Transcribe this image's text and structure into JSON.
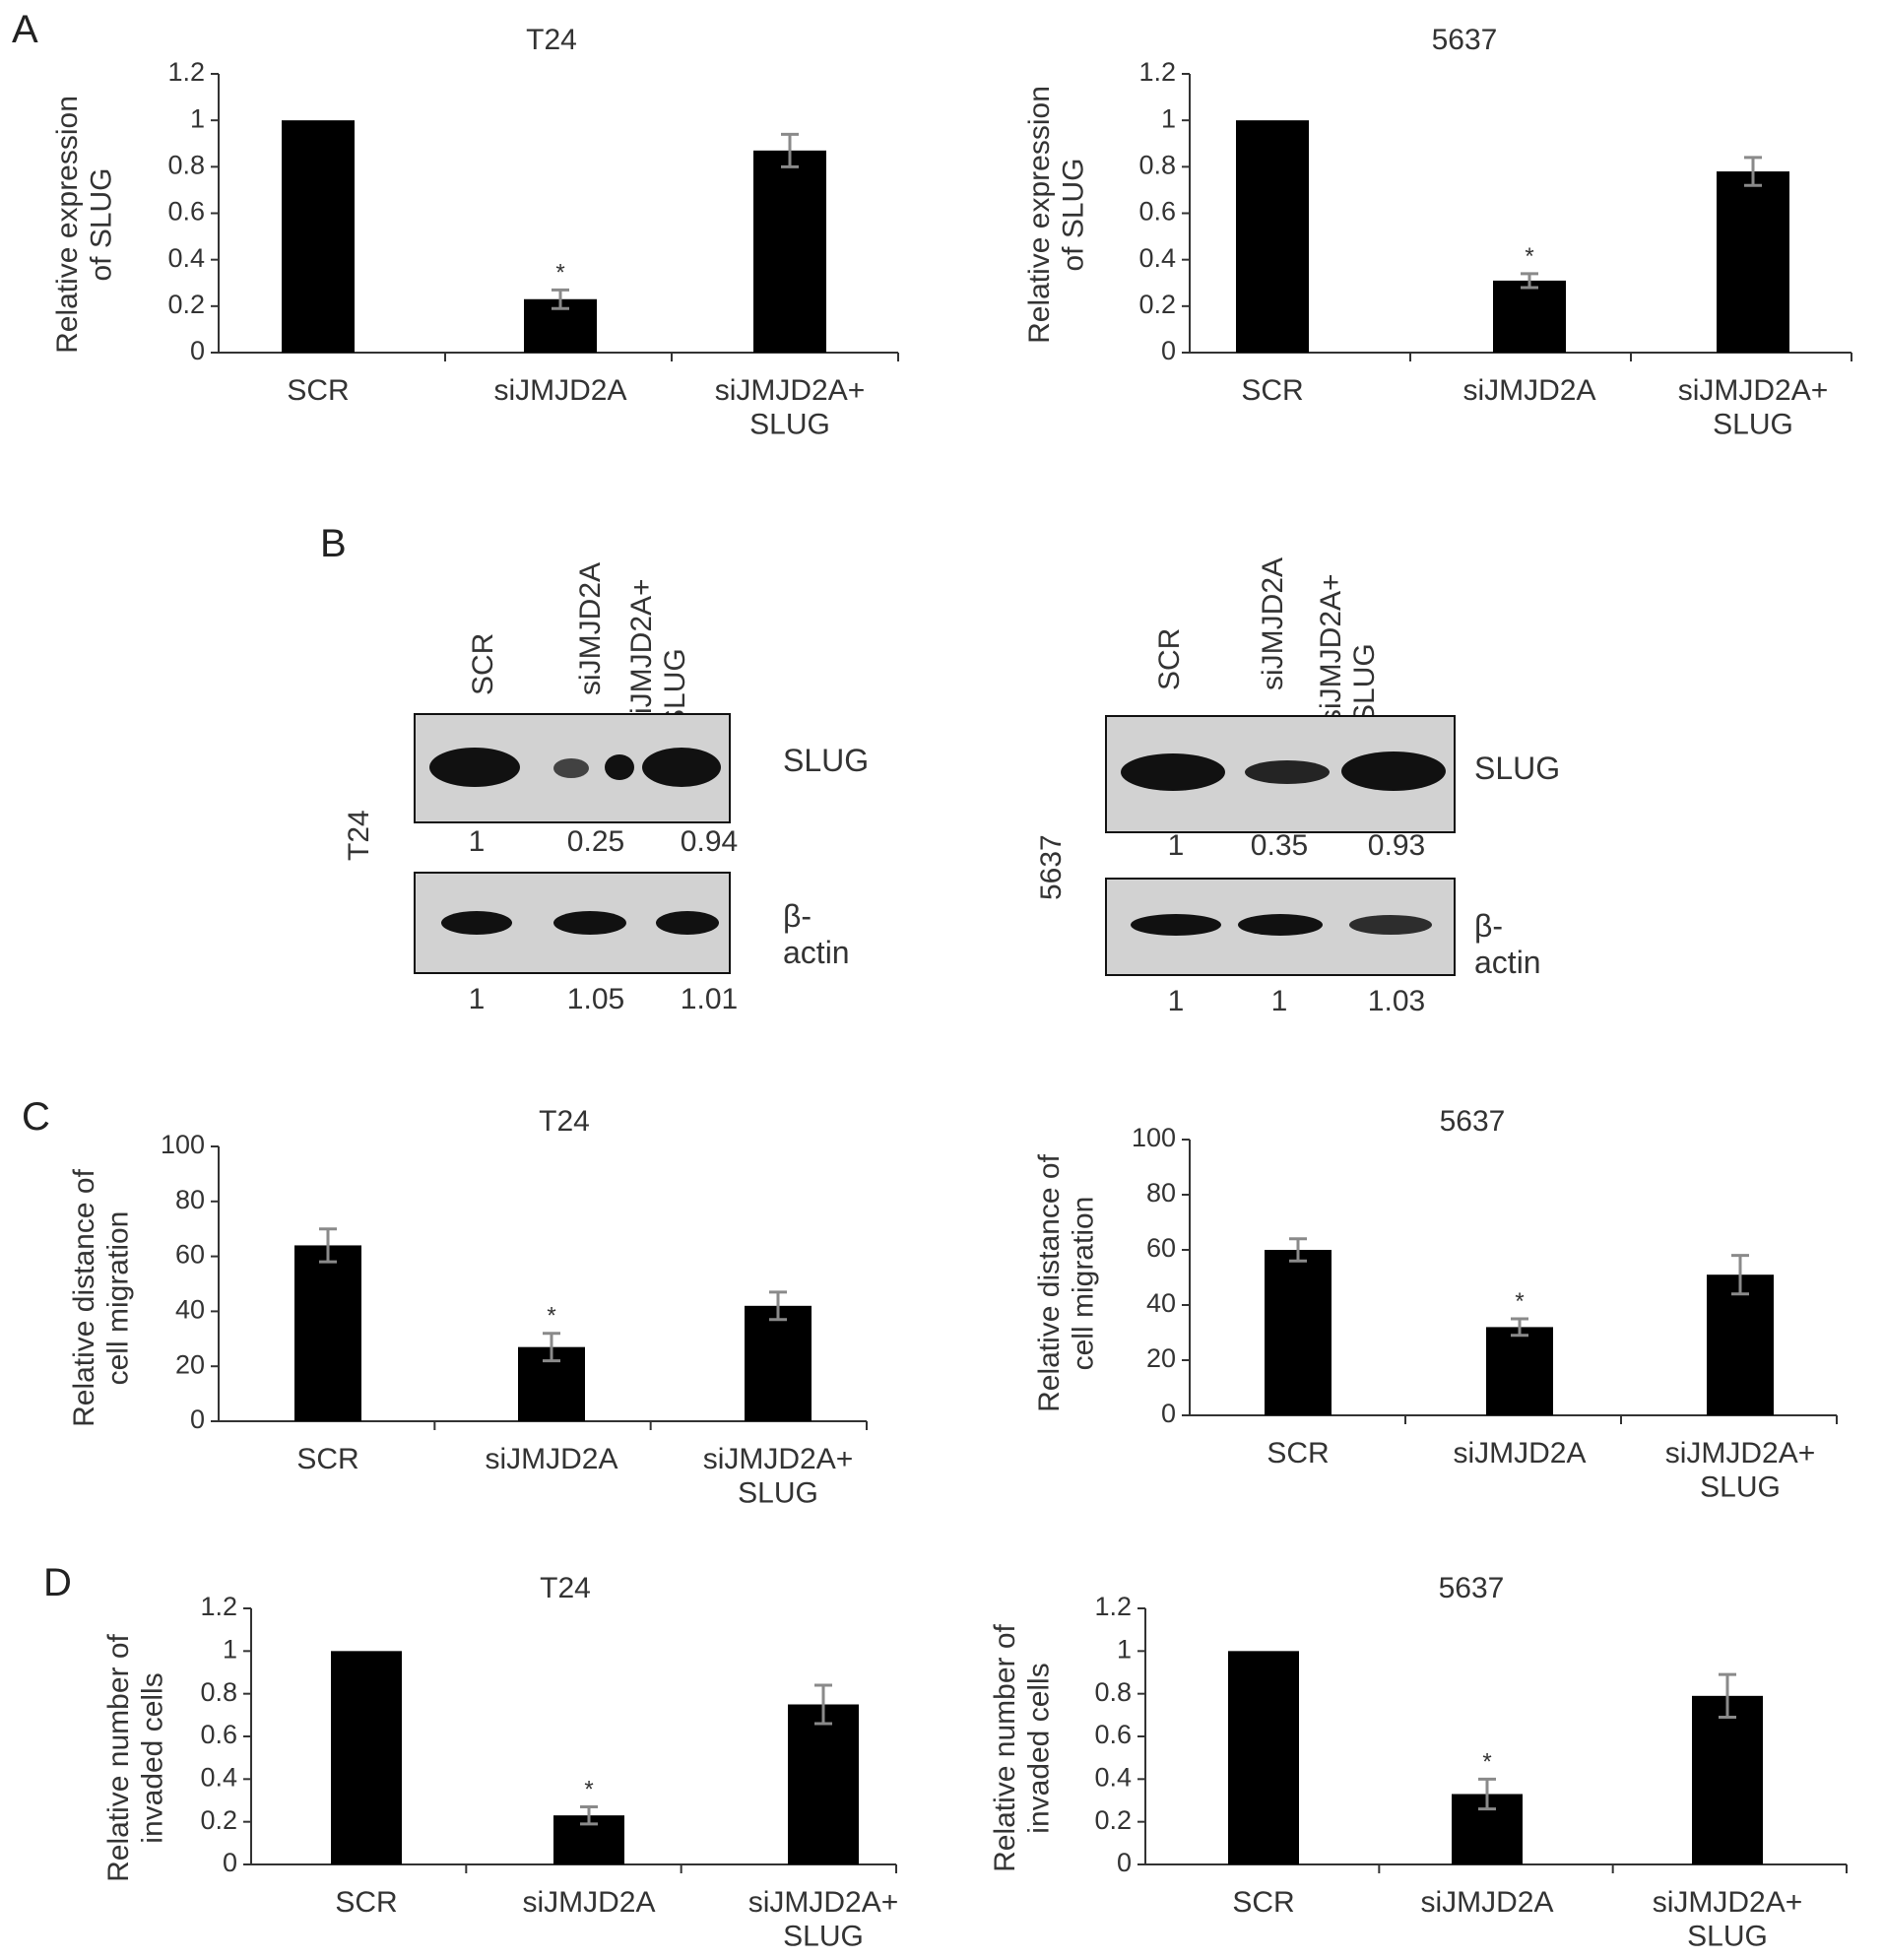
{
  "panels": {
    "a": "A",
    "b": "B",
    "c": "C",
    "d": "D"
  },
  "chart_data": [
    {
      "id": "A-T24",
      "type": "bar",
      "title": "T24",
      "ylabel": "Relative expression\nof SLUG",
      "ylim": [
        0,
        1.2
      ],
      "yticks": [
        0,
        0.2,
        0.4,
        0.6,
        0.8,
        1,
        1.2
      ],
      "categories": [
        "SCR",
        "siJMJD2A",
        "siJMJD2A+\nSLUG"
      ],
      "values": [
        1.0,
        0.23,
        0.87
      ],
      "errors": [
        0.0,
        0.04,
        0.07
      ],
      "significance": [
        "",
        "*",
        ""
      ]
    },
    {
      "id": "A-5637",
      "type": "bar",
      "title": "5637",
      "ylabel": "Relative expression\nof SLUG",
      "ylim": [
        0,
        1.2
      ],
      "yticks": [
        0,
        0.2,
        0.4,
        0.6,
        0.8,
        1,
        1.2
      ],
      "categories": [
        "SCR",
        "siJMJD2A",
        "siJMJD2A+\nSLUG"
      ],
      "values": [
        1.0,
        0.31,
        0.78
      ],
      "errors": [
        0.0,
        0.03,
        0.06
      ],
      "significance": [
        "",
        "*",
        ""
      ]
    },
    {
      "id": "C-T24",
      "type": "bar",
      "title": "T24",
      "ylabel": "Relative distance of\ncell migration",
      "ylim": [
        0,
        100
      ],
      "yticks": [
        0,
        20,
        40,
        60,
        80,
        100
      ],
      "categories": [
        "SCR",
        "siJMJD2A",
        "siJMJD2A+\nSLUG"
      ],
      "values": [
        64,
        27,
        42
      ],
      "errors": [
        6,
        5,
        5
      ],
      "significance": [
        "",
        "*",
        ""
      ]
    },
    {
      "id": "C-5637",
      "type": "bar",
      "title": "5637",
      "ylabel": "Relative distance of\ncell migration",
      "ylim": [
        0,
        100
      ],
      "yticks": [
        0,
        20,
        40,
        60,
        80,
        100
      ],
      "categories": [
        "SCR",
        "siJMJD2A",
        "siJMJD2A+\nSLUG"
      ],
      "values": [
        60,
        32,
        51
      ],
      "errors": [
        4,
        3,
        7
      ],
      "significance": [
        "",
        "*",
        ""
      ]
    },
    {
      "id": "D-T24",
      "type": "bar",
      "title": "T24",
      "ylabel": "Relative number of\ninvaded cells",
      "ylim": [
        0,
        1.2
      ],
      "yticks": [
        0,
        0.2,
        0.4,
        0.6,
        0.8,
        1,
        1.2
      ],
      "categories": [
        "SCR",
        "siJMJD2A",
        "siJMJD2A+\nSLUG"
      ],
      "values": [
        1.0,
        0.23,
        0.75
      ],
      "errors": [
        0.0,
        0.04,
        0.09
      ],
      "significance": [
        "",
        "*",
        ""
      ]
    },
    {
      "id": "D-5637",
      "type": "bar",
      "title": "5637",
      "ylabel": "Relative number of\ninvaded cells",
      "ylim": [
        0,
        1.2
      ],
      "yticks": [
        0,
        0.2,
        0.4,
        0.6,
        0.8,
        1,
        1.2
      ],
      "categories": [
        "SCR",
        "siJMJD2A",
        "siJMJD2A+\nSLUG"
      ],
      "values": [
        1.0,
        0.33,
        0.79
      ],
      "errors": [
        0.0,
        0.07,
        0.1
      ],
      "significance": [
        "",
        "*",
        ""
      ]
    }
  ],
  "blots": [
    {
      "cell_line": "T24",
      "lanes": [
        "SCR",
        "siJMJD2A",
        "siJMJD2A+\nSLUG"
      ],
      "slug_label": "SLUG",
      "slug_quant": [
        "1",
        "0.25",
        "0.94"
      ],
      "actin_label": "β-actin",
      "actin_quant": [
        "1",
        "1.05",
        "1.01"
      ]
    },
    {
      "cell_line": "5637",
      "lanes": [
        "SCR",
        "siJMJD2A",
        "siJMJD2A+\nSLUG"
      ],
      "slug_label": "SLUG",
      "slug_quant": [
        "1",
        "0.35",
        "0.93"
      ],
      "actin_label": "β-actin",
      "actin_quant": [
        "1",
        "1",
        "1.03"
      ]
    }
  ]
}
